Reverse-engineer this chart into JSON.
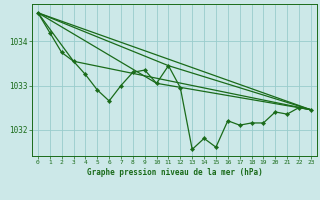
{
  "background_color": "#cce8e8",
  "grid_color": "#99cccc",
  "line_color": "#1a6b1a",
  "title": "Graphe pression niveau de la mer (hPa)",
  "xlim": [
    -0.5,
    23.5
  ],
  "ylim": [
    1031.4,
    1034.85
  ],
  "yticks": [
    1032,
    1033,
    1034
  ],
  "xticks": [
    0,
    1,
    2,
    3,
    4,
    5,
    6,
    7,
    8,
    9,
    10,
    11,
    12,
    13,
    14,
    15,
    16,
    17,
    18,
    19,
    20,
    21,
    22,
    23
  ],
  "series1_x": [
    0,
    1,
    2,
    3,
    4,
    5,
    6,
    7,
    8,
    9,
    10,
    11,
    12,
    13,
    14,
    15,
    16,
    17,
    18,
    19,
    20,
    21,
    22,
    23
  ],
  "series1_y": [
    1034.65,
    1034.2,
    1033.75,
    1033.55,
    1033.25,
    1032.9,
    1032.65,
    1033.0,
    1033.3,
    1033.35,
    1033.05,
    1033.45,
    1032.95,
    1031.55,
    1031.8,
    1031.6,
    1032.2,
    1032.1,
    1032.15,
    1032.15,
    1032.4,
    1032.35,
    1032.5,
    1032.45
  ],
  "line2_x": [
    0,
    23
  ],
  "line2_y": [
    1034.65,
    1032.45
  ],
  "line3_x": [
    0,
    3,
    23
  ],
  "line3_y": [
    1034.65,
    1033.55,
    1032.45
  ],
  "line4_x": [
    0,
    11,
    23
  ],
  "line4_y": [
    1034.65,
    1033.45,
    1032.45
  ],
  "line5_x": [
    0,
    10,
    23
  ],
  "line5_y": [
    1034.65,
    1033.05,
    1032.45
  ]
}
